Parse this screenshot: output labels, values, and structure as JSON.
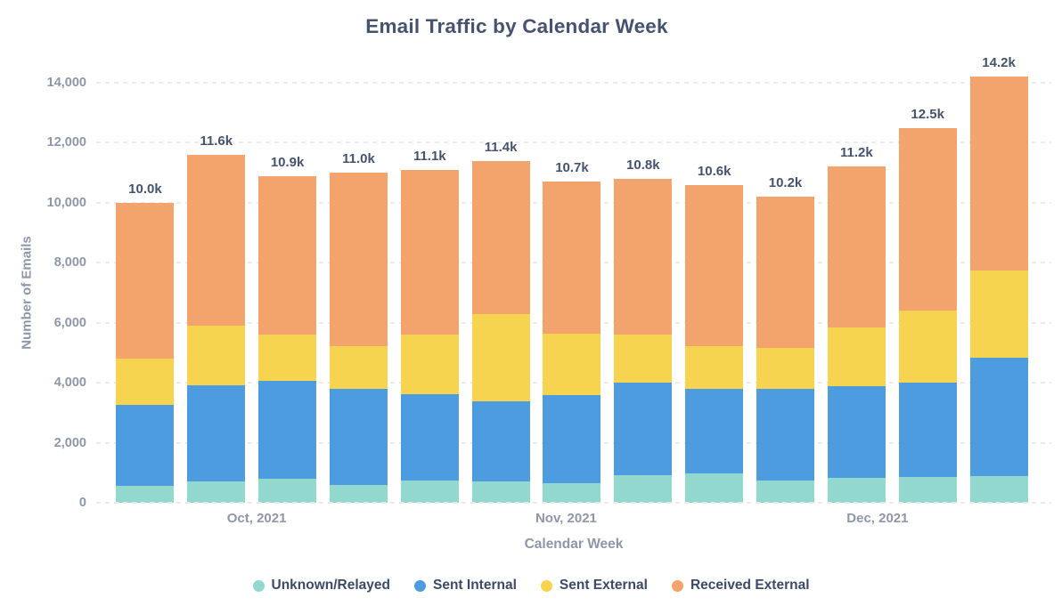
{
  "chart_data": {
    "type": "bar",
    "stacked": true,
    "title": "Email Traffic by Calendar Week",
    "xlabel": "Calendar Week",
    "ylabel": "Number of Emails",
    "ylim": [
      0,
      14000
    ],
    "grid": "horizontal-dashed",
    "legend_position": "bottom",
    "y_ticks": [
      {
        "value": 0,
        "label": "0"
      },
      {
        "value": 2000,
        "label": "2,000"
      },
      {
        "value": 4000,
        "label": "4,000"
      },
      {
        "value": 6000,
        "label": "6,000"
      },
      {
        "value": 8000,
        "label": "8,000"
      },
      {
        "value": 10000,
        "label": "10,000"
      },
      {
        "value": 12000,
        "label": "12,000"
      },
      {
        "value": 14000,
        "label": "14,000"
      }
    ],
    "month_ticks": [
      {
        "label": "Oct, 2021",
        "x_pct": 16.8
      },
      {
        "label": "Nov, 2021",
        "x_pct": 49.2
      },
      {
        "label": "Dec, 2021",
        "x_pct": 81.8
      }
    ],
    "series": [
      {
        "name": "Unknown/Relayed",
        "color": "#93D8CE",
        "values": [
          575,
          700,
          800,
          600,
          750,
          725,
          650,
          925,
          975,
          750,
          825,
          875,
          900
        ]
      },
      {
        "name": "Sent Internal",
        "color": "#4E9CE0",
        "values": [
          2680,
          3225,
          3250,
          3200,
          2875,
          2650,
          2950,
          3080,
          2825,
          3050,
          3050,
          3125,
          3950
        ]
      },
      {
        "name": "Sent External",
        "color": "#F6D44F",
        "values": [
          1550,
          1975,
          1550,
          1425,
          1975,
          2900,
          2025,
          1595,
          1425,
          1350,
          1975,
          2400,
          2900
        ]
      },
      {
        "name": "Received External",
        "color": "#F2A46C",
        "values": [
          5195,
          5700,
          5300,
          5775,
          5500,
          5125,
          5075,
          5200,
          5375,
          5050,
          5350,
          6100,
          6450
        ]
      }
    ],
    "totals": [
      10000,
      11600,
      10900,
      11000,
      11100,
      11400,
      10700,
      10800,
      10600,
      10200,
      11200,
      12500,
      14200
    ],
    "total_labels": [
      "10.0k",
      "11.6k",
      "10.9k",
      "11.0k",
      "11.1k",
      "11.4k",
      "10.7k",
      "10.8k",
      "10.6k",
      "10.2k",
      "11.2k",
      "12.5k",
      "14.2k"
    ]
  },
  "colors": {
    "title_text": "#46536F",
    "axis_text": "#8E96A7",
    "value_label_text": "#46536F",
    "legend_text": "#3C4A66",
    "gridline": "#E9EBEF",
    "background": "#FFFFFF"
  }
}
